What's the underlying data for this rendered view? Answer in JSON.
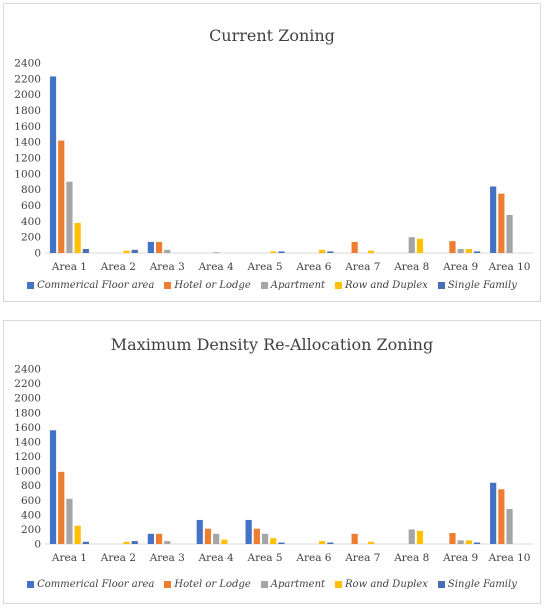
{
  "chart_data": [
    {
      "type": "bar",
      "title": "Current Zoning",
      "categories": [
        "Area 1",
        "Area 2",
        "Area 3",
        "Area 4",
        "Area 5",
        "Area 6",
        "Area 7",
        "Area 8",
        "Area 9",
        "Area 10"
      ],
      "ylim": [
        0,
        2400
      ],
      "yticks": [
        0,
        200,
        400,
        600,
        800,
        1000,
        1200,
        1400,
        1600,
        1800,
        2000,
        2200,
        2400
      ],
      "grid": false,
      "legend": "bottom",
      "series": [
        {
          "name": "Commerical Floor area",
          "color": "#4472c4",
          "values": [
            2230,
            0,
            140,
            0,
            0,
            0,
            0,
            0,
            0,
            840
          ]
        },
        {
          "name": "Hotel or Lodge",
          "color": "#ed7d31",
          "values": [
            1420,
            0,
            140,
            0,
            0,
            0,
            140,
            0,
            150,
            750
          ]
        },
        {
          "name": "Apartment",
          "color": "#a5a5a5",
          "values": [
            900,
            0,
            40,
            10,
            0,
            0,
            0,
            200,
            50,
            480
          ]
        },
        {
          "name": "Row and Duplex",
          "color": "#ffc000",
          "values": [
            380,
            30,
            0,
            0,
            20,
            40,
            30,
            180,
            50,
            0
          ]
        },
        {
          "name": "Single Family",
          "color": "#4a6eb5",
          "values": [
            50,
            40,
            0,
            0,
            20,
            20,
            0,
            0,
            20,
            0
          ]
        }
      ]
    },
    {
      "type": "bar",
      "title": "Maximum Density Re-Allocation Zoning",
      "categories": [
        "Area 1",
        "Area 2",
        "Area 3",
        "Area 4",
        "Area 5",
        "Area 6",
        "Area 7",
        "Area 8",
        "Area 9",
        "Area 10"
      ],
      "ylim": [
        0,
        2400
      ],
      "yticks": [
        0,
        200,
        400,
        600,
        800,
        1000,
        1200,
        1400,
        1600,
        1800,
        2000,
        2200,
        2400
      ],
      "grid": false,
      "legend": "bottom",
      "series": [
        {
          "name": "Commerical Floor area",
          "color": "#4472c4",
          "values": [
            1560,
            0,
            140,
            330,
            330,
            0,
            0,
            0,
            0,
            840
          ]
        },
        {
          "name": "Hotel or Lodge",
          "color": "#ed7d31",
          "values": [
            990,
            0,
            140,
            210,
            210,
            0,
            140,
            0,
            150,
            750
          ]
        },
        {
          "name": "Apartment",
          "color": "#a5a5a5",
          "values": [
            620,
            0,
            40,
            140,
            140,
            0,
            0,
            200,
            50,
            480
          ]
        },
        {
          "name": "Row and Duplex",
          "color": "#ffc000",
          "values": [
            250,
            30,
            0,
            60,
            80,
            40,
            30,
            180,
            50,
            0
          ]
        },
        {
          "name": "Single Family",
          "color": "#4a6eb5",
          "values": [
            30,
            40,
            0,
            0,
            20,
            20,
            0,
            0,
            20,
            0
          ]
        }
      ]
    }
  ]
}
